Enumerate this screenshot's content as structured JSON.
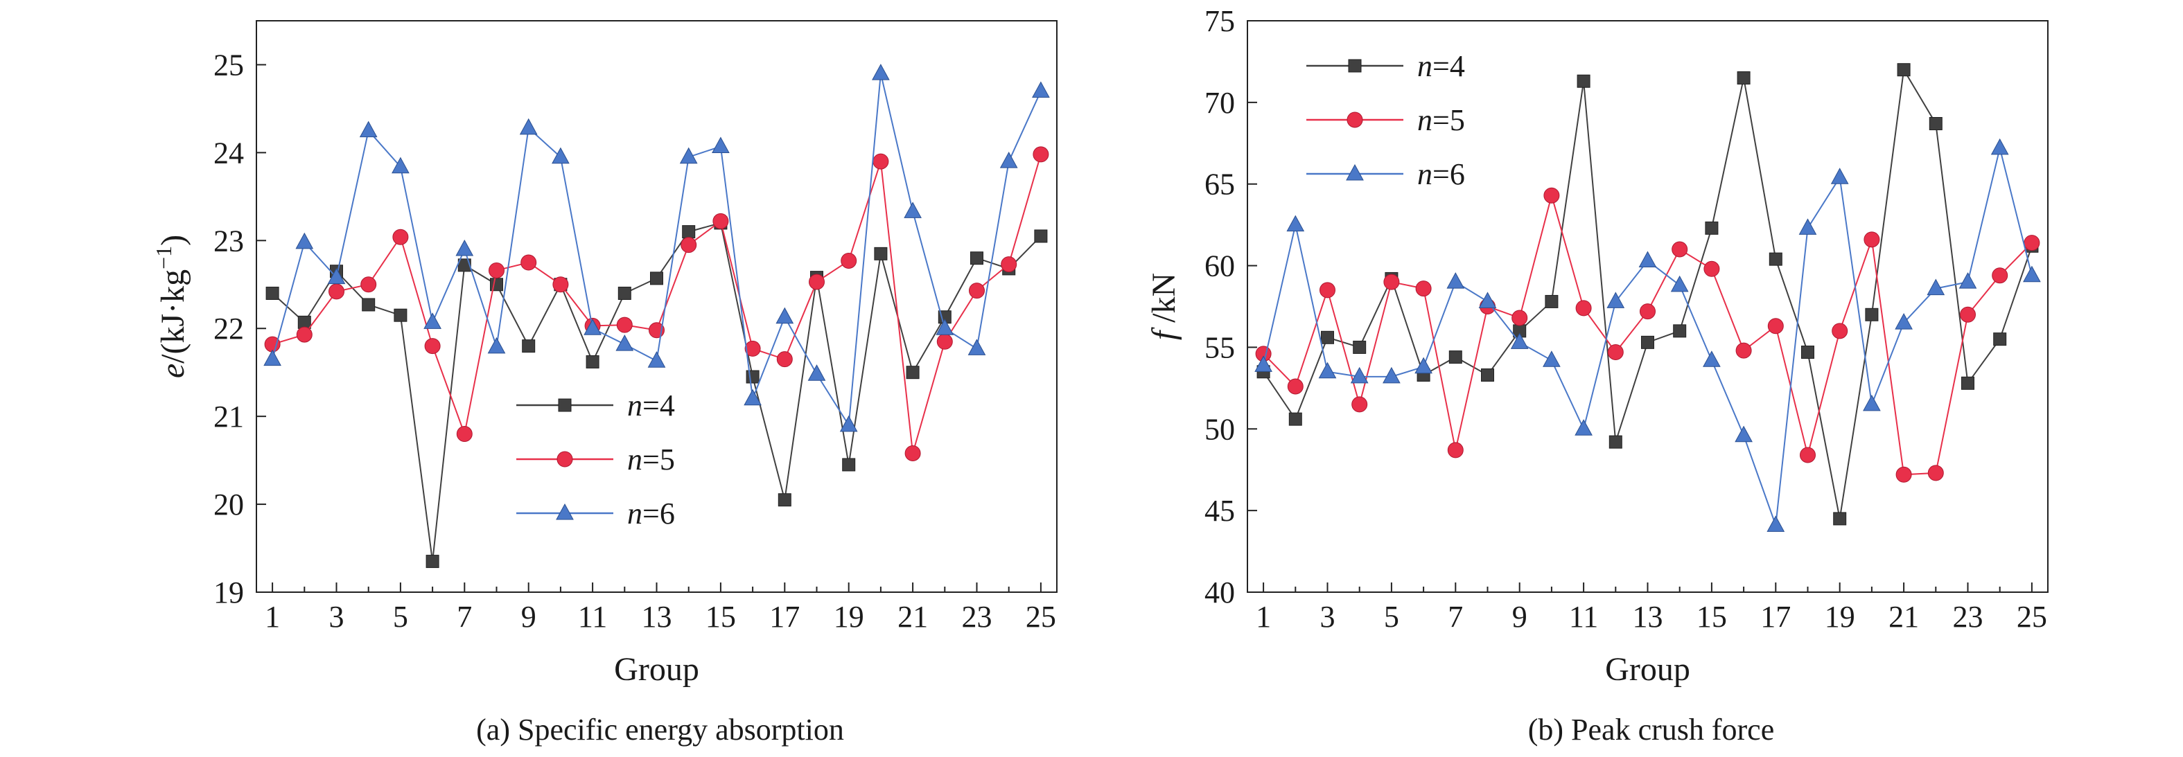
{
  "chart_data": [
    {
      "type": "line",
      "panel_caption": "(a) Specific energy absorption",
      "xlabel": "Group",
      "ylabel": {
        "var": "e",
        "unit": "/(kJ·kg",
        "exp": "−1",
        "close": ")"
      },
      "xlim": [
        0.5,
        25.5
      ],
      "ylim": [
        19,
        25.5
      ],
      "xticks": [
        1,
        3,
        5,
        7,
        9,
        11,
        13,
        15,
        17,
        19,
        21,
        23,
        25
      ],
      "yticks": [
        19,
        20,
        21,
        22,
        23,
        24,
        25
      ],
      "legend_position": "center",
      "grid": false,
      "x": [
        1,
        2,
        3,
        4,
        5,
        6,
        7,
        8,
        9,
        10,
        11,
        12,
        13,
        14,
        15,
        16,
        17,
        18,
        19,
        20,
        21,
        22,
        23,
        24,
        25
      ],
      "series": [
        {
          "name": "n=4",
          "var": "n",
          "eq": "=4",
          "color": "#404040",
          "marker": "square",
          "values": [
            22.4,
            22.07,
            22.65,
            22.27,
            22.15,
            19.35,
            22.72,
            22.5,
            21.8,
            22.5,
            21.62,
            22.4,
            22.57,
            23.1,
            23.2,
            21.45,
            20.05,
            22.58,
            20.45,
            22.85,
            21.5,
            22.13,
            22.8,
            22.68,
            23.05
          ]
        },
        {
          "name": "n=5",
          "var": "n",
          "eq": "=5",
          "color": "#e8304a",
          "marker": "circle",
          "values": [
            21.82,
            21.93,
            22.42,
            22.5,
            23.04,
            21.8,
            20.8,
            22.66,
            22.75,
            22.5,
            22.03,
            22.04,
            21.98,
            22.95,
            23.22,
            21.77,
            21.65,
            22.53,
            22.77,
            23.9,
            20.58,
            21.85,
            22.43,
            22.73,
            23.98
          ]
        },
        {
          "name": "n=6",
          "var": "n",
          "eq": "=6",
          "color": "#4a78c8",
          "marker": "triangle",
          "values": [
            21.65,
            22.98,
            22.58,
            24.25,
            23.84,
            22.07,
            22.9,
            21.79,
            24.28,
            23.95,
            22.0,
            21.82,
            21.63,
            23.95,
            24.07,
            21.2,
            22.13,
            21.48,
            20.9,
            24.9,
            23.33,
            22.0,
            21.77,
            23.9,
            24.7
          ]
        }
      ]
    },
    {
      "type": "line",
      "panel_caption": "(b) Peak crush force",
      "xlabel": "Group",
      "ylabel": {
        "var": "f",
        "unit": " /kN",
        "exp": "",
        "close": ""
      },
      "xlim": [
        0.5,
        25.5
      ],
      "ylim": [
        40,
        75
      ],
      "xticks": [
        1,
        3,
        5,
        7,
        9,
        11,
        13,
        15,
        17,
        19,
        21,
        23,
        25
      ],
      "yticks": [
        40,
        45,
        50,
        55,
        60,
        65,
        70,
        75
      ],
      "legend_position": "top-left",
      "grid": false,
      "x": [
        1,
        2,
        3,
        4,
        5,
        6,
        7,
        8,
        9,
        10,
        11,
        12,
        13,
        14,
        15,
        16,
        17,
        18,
        19,
        20,
        21,
        22,
        23,
        24,
        25
      ],
      "series": [
        {
          "name": "n=4",
          "var": "n",
          "eq": "=4",
          "color": "#404040",
          "marker": "square",
          "values": [
            53.5,
            50.6,
            55.6,
            55.0,
            59.2,
            53.3,
            54.4,
            53.3,
            56.0,
            57.8,
            71.3,
            49.2,
            55.3,
            56.0,
            62.3,
            71.5,
            60.4,
            54.7,
            44.5,
            57.0,
            72.0,
            68.7,
            52.8,
            55.5,
            61.2
          ]
        },
        {
          "name": "n=5",
          "var": "n",
          "eq": "=5",
          "color": "#e8304a",
          "marker": "circle",
          "values": [
            54.6,
            52.6,
            58.5,
            51.5,
            59.0,
            58.6,
            48.7,
            57.5,
            56.8,
            64.3,
            57.4,
            54.7,
            57.2,
            61.0,
            59.8,
            54.8,
            56.3,
            48.4,
            56.0,
            61.6,
            47.2,
            47.3,
            57.0,
            59.4,
            61.4
          ]
        },
        {
          "name": "n=6",
          "var": "n",
          "eq": "=6",
          "color": "#4a78c8",
          "marker": "triangle",
          "values": [
            53.9,
            62.5,
            53.5,
            53.2,
            53.2,
            53.8,
            59.0,
            57.8,
            55.3,
            54.2,
            50.0,
            57.8,
            60.3,
            58.8,
            54.2,
            49.6,
            44.1,
            62.3,
            65.4,
            51.5,
            56.5,
            58.6,
            59.0,
            67.2,
            59.4
          ]
        }
      ]
    }
  ]
}
